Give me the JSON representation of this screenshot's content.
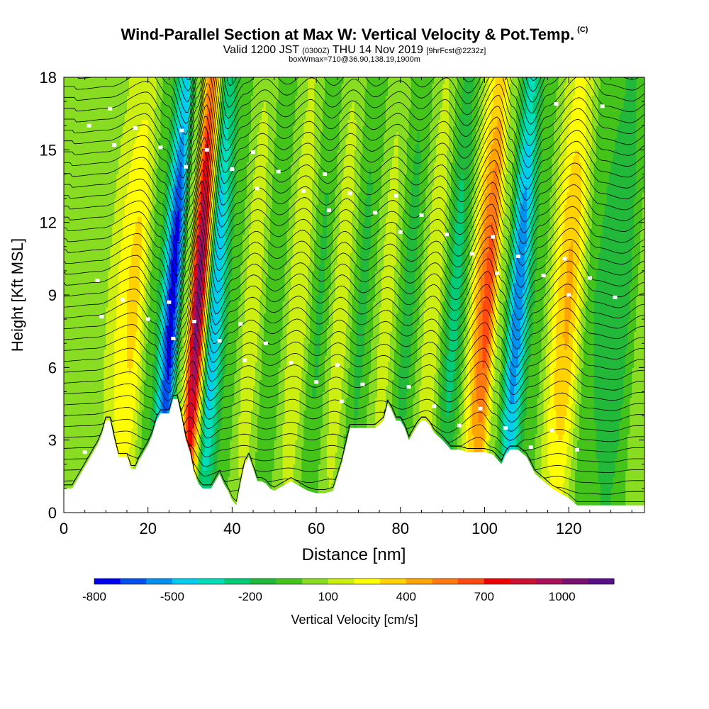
{
  "header": {
    "title": "Wind-Parallel Section at Max W: Vertical Velocity & Pot.Temp.",
    "title_mark": "(C)",
    "subtitle_main": "Valid 1200 JST",
    "subtitle_zulu": "(0300Z)",
    "subtitle_date": "THU 14 Nov 2019",
    "subtitle_fcst": "[9hrFcst@2232z]",
    "subtitle2": "boxWmax=710@36.90,138.19,1900m"
  },
  "chart_data": {
    "type": "heatmap",
    "xlabel": "Distance [nm]",
    "ylabel": "Height [Kft MSL]",
    "xlim": [
      0,
      138
    ],
    "ylim": [
      0,
      18
    ],
    "x_ticks": [
      0,
      20,
      40,
      60,
      80,
      100,
      120
    ],
    "y_ticks": [
      0,
      3,
      6,
      9,
      12,
      15,
      18
    ],
    "colorbar": {
      "label": "Vertical Velocity [cm/s]",
      "tick_labels": [
        "-800",
        "-500",
        "-200",
        "100",
        "400",
        "700",
        "1000"
      ],
      "tick_values": [
        -800,
        -500,
        -200,
        100,
        400,
        700,
        1000
      ],
      "levels_min": -800,
      "levels_step": 100,
      "colors": [
        "#0000ee",
        "#0050ee",
        "#0090ee",
        "#00ccee",
        "#00ddbb",
        "#00cc77",
        "#22b83a",
        "#44c41a",
        "#88dd22",
        "#ccee11",
        "#ffff00",
        "#ffd200",
        "#ffa500",
        "#ff7a10",
        "#ff4a10",
        "#ee0000",
        "#cc1133",
        "#a8105a",
        "#7a1070",
        "#55108a"
      ]
    },
    "velocity_bands": [
      {
        "x": 0,
        "w": 0
      },
      {
        "x": 8,
        "w": 50
      },
      {
        "x": 17,
        "w": 330
      },
      {
        "x": 22,
        "w": -100
      },
      {
        "x": 26,
        "w": -780
      },
      {
        "x": 29,
        "w": 60
      },
      {
        "x": 32,
        "w": 1050
      },
      {
        "x": 36,
        "w": -500
      },
      {
        "x": 40,
        "w": -80
      },
      {
        "x": 45,
        "w": 180
      },
      {
        "x": 50,
        "w": -100
      },
      {
        "x": 56,
        "w": 200
      },
      {
        "x": 61,
        "w": -120
      },
      {
        "x": 66,
        "w": 180
      },
      {
        "x": 71,
        "w": -130
      },
      {
        "x": 77,
        "w": 150
      },
      {
        "x": 82,
        "w": -150
      },
      {
        "x": 88,
        "w": 200
      },
      {
        "x": 93,
        "w": -250
      },
      {
        "x": 101,
        "w": 650
      },
      {
        "x": 104,
        "w": 80
      },
      {
        "x": 108,
        "w": -600
      },
      {
        "x": 112,
        "w": -100
      },
      {
        "x": 120,
        "w": 420
      },
      {
        "x": 126,
        "w": -100
      },
      {
        "x": 132,
        "w": -200
      },
      {
        "x": 138,
        "w": 50
      }
    ],
    "terrain": {
      "x": [
        0,
        2,
        3,
        4,
        5,
        6,
        7,
        8,
        9,
        10,
        11,
        12,
        13,
        14,
        15,
        16,
        17,
        18,
        19,
        20,
        21,
        22,
        23,
        24,
        25,
        26,
        27,
        28,
        29,
        30,
        31,
        32,
        33,
        34,
        35,
        36,
        37,
        38,
        39,
        40,
        41,
        42,
        43,
        44,
        45,
        46,
        47,
        48,
        49,
        50,
        52,
        54,
        56,
        58,
        60,
        62,
        64,
        66,
        68,
        70,
        72,
        74,
        76,
        77,
        78,
        79,
        80,
        81,
        82,
        83,
        84,
        85,
        86,
        87,
        88,
        90,
        92,
        94,
        96,
        98,
        100,
        102,
        104,
        105,
        106,
        107,
        108,
        110,
        112,
        114,
        116,
        118,
        120,
        122,
        124,
        126,
        128,
        130,
        132,
        134,
        136,
        138
      ],
      "y": [
        1.0,
        1.0,
        1.3,
        1.6,
        1.9,
        2.2,
        2.5,
        2.8,
        3.2,
        3.8,
        3.8,
        3.0,
        2.3,
        2.3,
        2.3,
        1.8,
        1.8,
        2.2,
        2.5,
        2.8,
        3.2,
        3.8,
        4.1,
        4.1,
        4.1,
        4.7,
        4.7,
        3.9,
        3.0,
        2.5,
        1.6,
        1.2,
        1.0,
        1.0,
        1.0,
        1.3,
        1.6,
        1.2,
        0.9,
        0.5,
        0.3,
        1.2,
        2.0,
        2.3,
        1.8,
        1.3,
        1.3,
        1.2,
        1.0,
        0.9,
        1.1,
        1.3,
        1.1,
        0.9,
        0.8,
        0.8,
        0.9,
        2.0,
        3.5,
        3.5,
        3.5,
        3.5,
        3.8,
        4.5,
        4.2,
        3.8,
        3.8,
        3.5,
        3.0,
        3.3,
        3.6,
        3.8,
        3.8,
        3.6,
        3.3,
        3.0,
        2.6,
        2.6,
        2.5,
        2.5,
        2.5,
        2.4,
        2.0,
        2.4,
        2.6,
        2.6,
        2.6,
        2.3,
        1.6,
        1.3,
        1.0,
        0.8,
        0.6,
        0.3,
        0.3,
        0.3,
        0.3,
        0.3,
        0.3,
        0.3,
        0.3,
        0.3
      ]
    },
    "contour_label_count": 60
  }
}
